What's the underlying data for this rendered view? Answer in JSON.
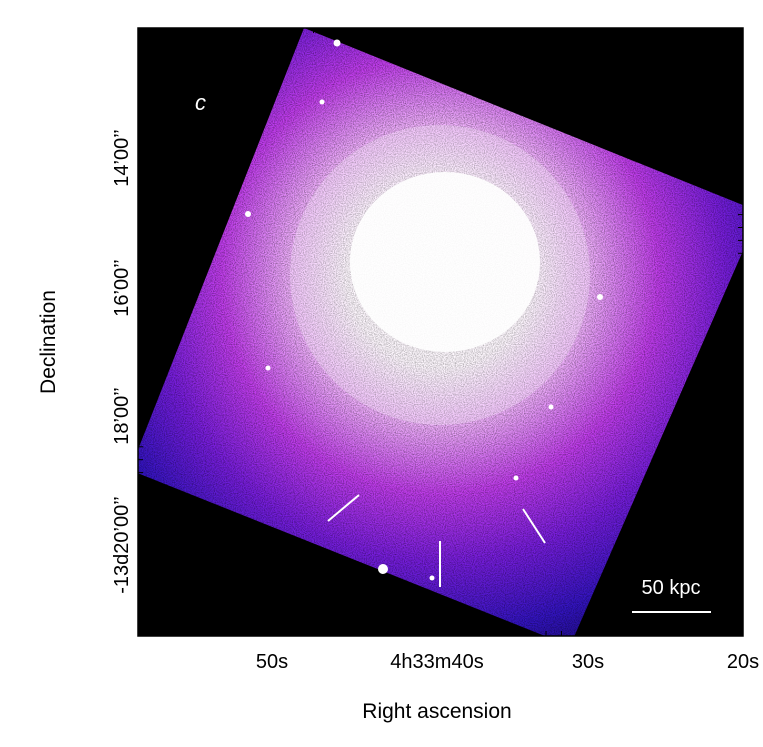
{
  "panel_label": "c",
  "x_axis": {
    "title": "Right ascension",
    "tick_labels": [
      "50s",
      "4h33m40s",
      "30s",
      "20s"
    ]
  },
  "y_axis": {
    "title": "Declination",
    "tick_labels": [
      "14’00’’",
      "16’00’’",
      "18’00’’",
      "-13d20’00’’"
    ]
  },
  "scale_bar": {
    "label": "50 kpc"
  },
  "colors": {
    "background": "#000000",
    "halo_outer": "#2a12c8",
    "halo_mid": "#8a1ee6",
    "core": "#ffffff",
    "markers": "#ffffff"
  },
  "features": {
    "white_marker_lines": 3,
    "point_sources_visible": true
  }
}
